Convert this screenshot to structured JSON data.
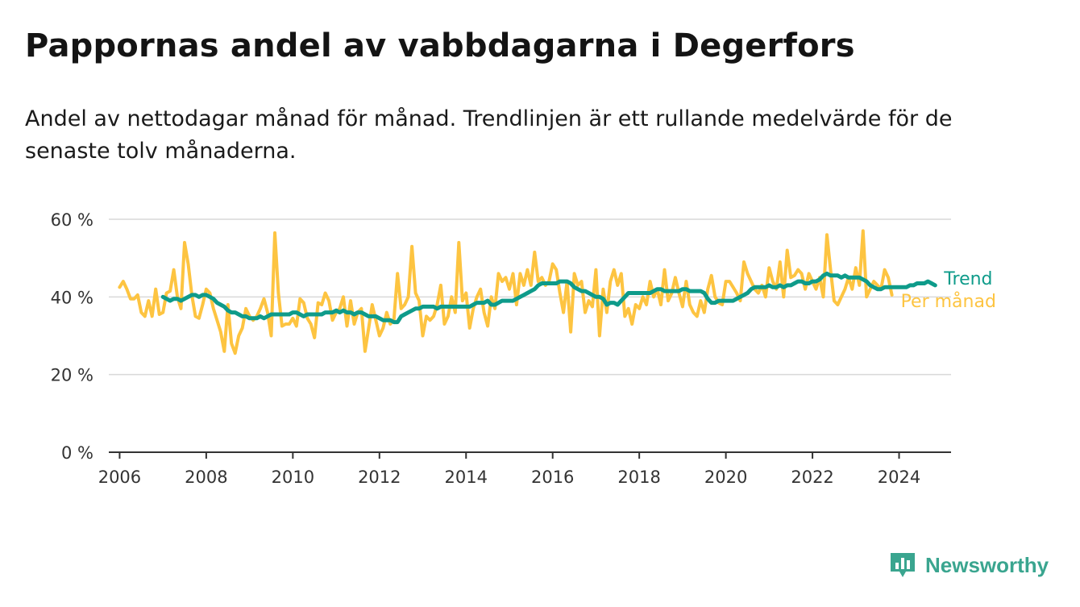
{
  "title": "Pappornas andel av vabbdagarna i Degerfors",
  "subtitle": "Andel av nettodagar månad för månad. Trendlinjen är ett rullande medelvärde för de senaste tolv månaderna.",
  "brand": {
    "name": "Newsworthy",
    "icon": "newsworthy-logo-icon",
    "color": "#3aa58f"
  },
  "chart_data": {
    "type": "line",
    "ylim": [
      0,
      60
    ],
    "yticks": [
      0,
      20,
      40,
      60
    ],
    "ytick_labels": [
      "0 %",
      "20 %",
      "40 %",
      "60 %"
    ],
    "xlim": [
      2005.75,
      2025.2
    ],
    "xticks": [
      2006,
      2008,
      2010,
      2012,
      2014,
      2016,
      2018,
      2020,
      2022,
      2024
    ],
    "xtick_labels": [
      "2006",
      "2008",
      "2010",
      "2012",
      "2014",
      "2016",
      "2018",
      "2020",
      "2022",
      "2024"
    ],
    "grid": true,
    "legend": "direct labels at line ends (right)",
    "series": [
      {
        "name": "Per månad",
        "color": "#fdc441",
        "x_start": "2006-01",
        "values": [
          42.5,
          44,
          42,
          39.5,
          39.5,
          40.5,
          36,
          35,
          39,
          35,
          42,
          35.5,
          36,
          41,
          41.5,
          47,
          40,
          37,
          54,
          48.5,
          40.5,
          35,
          34.5,
          38,
          42,
          41,
          37,
          34,
          31,
          26,
          38,
          28,
          25.5,
          30,
          32,
          37,
          35,
          34,
          35,
          37,
          39.5,
          36,
          30,
          56.5,
          41,
          32.5,
          33,
          33,
          34.5,
          32.5,
          39.5,
          38.5,
          34.5,
          33,
          29.5,
          38.5,
          38,
          41,
          39,
          34,
          36,
          37,
          40,
          32.5,
          39,
          33,
          36,
          37,
          26,
          32,
          38,
          34,
          30,
          32,
          36,
          33,
          34,
          46,
          37,
          38,
          40,
          53,
          41,
          39,
          30,
          35,
          34,
          35,
          38,
          43,
          33,
          35,
          40,
          36,
          54,
          39,
          41,
          32,
          37,
          40,
          42,
          36,
          32.5,
          40,
          37,
          46,
          44,
          45,
          42,
          46,
          38,
          46,
          43,
          47,
          43,
          51.5,
          44,
          45,
          43,
          44,
          48.5,
          47,
          41,
          36,
          44,
          31,
          46,
          43,
          44,
          36,
          39,
          37.5,
          47,
          30,
          42,
          36,
          44,
          47,
          43,
          46,
          35,
          37,
          33,
          38,
          37,
          40,
          38,
          44,
          40,
          42,
          38,
          47,
          39,
          41,
          45,
          41,
          37.5,
          44,
          38,
          36,
          35,
          39,
          36,
          42,
          45.5,
          40,
          38.5,
          38,
          44,
          44,
          42.5,
          41,
          39,
          49,
          46,
          44,
          42,
          41,
          43,
          40,
          47.5,
          44,
          42,
          49,
          40,
          52,
          45,
          45.5,
          47,
          46,
          42,
          46,
          44,
          42,
          45,
          40,
          56,
          47,
          39,
          38,
          40,
          42,
          45,
          42,
          47.5,
          43,
          57,
          40,
          42,
          44,
          43,
          42,
          47,
          45,
          40.5
        ]
      },
      {
        "name": "Trend",
        "color": "#0e9b8a",
        "x_start": "2007-01",
        "values": [
          40,
          39.5,
          39,
          39.5,
          39.5,
          39,
          39.5,
          40,
          40.5,
          40.5,
          40,
          40.5,
          40.5,
          40,
          39.5,
          38.5,
          38,
          37.5,
          36.5,
          36,
          36,
          35.5,
          35,
          35,
          34.5,
          34.5,
          34.5,
          35,
          34.5,
          35,
          35.5,
          35.5,
          35.5,
          35.5,
          35.5,
          35.5,
          36,
          36,
          35.5,
          35,
          35.5,
          35.5,
          35.5,
          35.5,
          35.5,
          36,
          36,
          36,
          36.5,
          36,
          36.5,
          36,
          36,
          35.5,
          36,
          36,
          35.5,
          35,
          35,
          35,
          34.5,
          34,
          34,
          34,
          33.5,
          33.5,
          35,
          35.5,
          36,
          36.5,
          37,
          37,
          37.5,
          37.5,
          37.5,
          37.5,
          37,
          37.5,
          37.5,
          37.5,
          37.5,
          37.5,
          37.5,
          37.5,
          37.5,
          37.5,
          38,
          38.5,
          38.5,
          38.5,
          39,
          38,
          38,
          38.5,
          39,
          39,
          39,
          39,
          39.5,
          40,
          40.5,
          41,
          41.5,
          42,
          43,
          43.5,
          43.5,
          43.5,
          43.5,
          43.5,
          44,
          44,
          44,
          43.5,
          42.5,
          42,
          41.5,
          41.5,
          41,
          40.5,
          40,
          40,
          39.5,
          38,
          38.5,
          38.5,
          38,
          39,
          40,
          41,
          41,
          41,
          41,
          41,
          41,
          41,
          41.5,
          42,
          42,
          41.5,
          41.5,
          41.5,
          41.5,
          41.5,
          42,
          42,
          41.5,
          41.5,
          41.5,
          41.5,
          41,
          39.5,
          38.5,
          38.5,
          39,
          39,
          39,
          39,
          39,
          39.5,
          40,
          40.5,
          41,
          42,
          42.5,
          42.5,
          42.5,
          42.5,
          43,
          42.5,
          42.5,
          43,
          42.5,
          43,
          43,
          43.5,
          44,
          44,
          43.5,
          43.5,
          44,
          44,
          44.5,
          45.5,
          46,
          45.5,
          45.5,
          45.5,
          45,
          45.5,
          45,
          45,
          45,
          45,
          44.5,
          44,
          43,
          42.5,
          42,
          42,
          42.5,
          42.5,
          42.5,
          42.5,
          42.5,
          42.5,
          42.5,
          43,
          43,
          43.5,
          43.5,
          43.5,
          44,
          43.5,
          43
        ]
      }
    ]
  }
}
